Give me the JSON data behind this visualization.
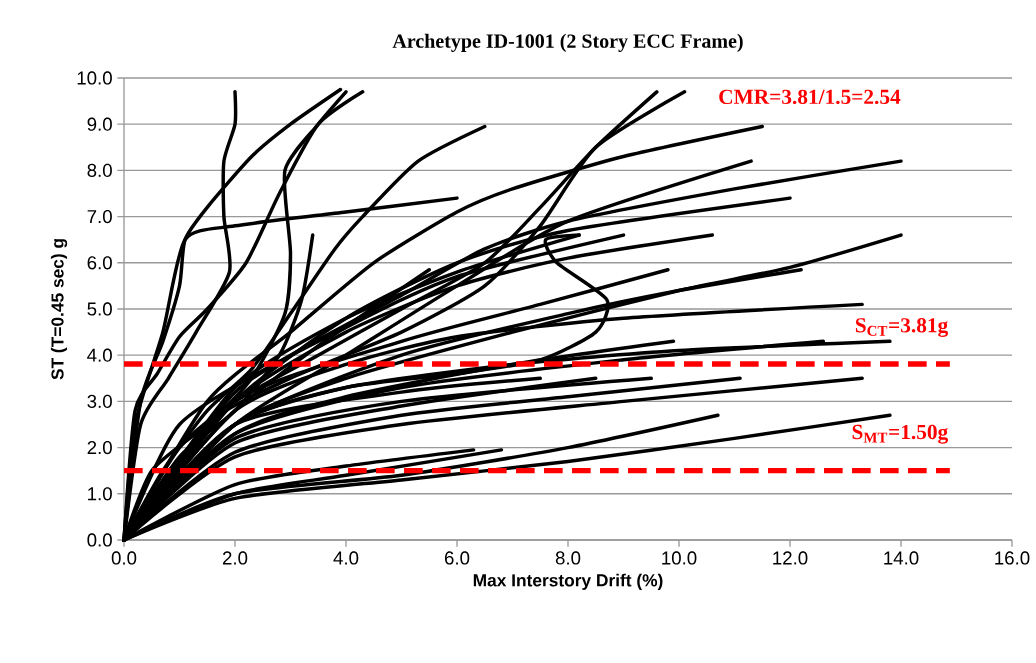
{
  "chart_data": {
    "type": "line",
    "title": "Archetype ID-1001 (2 Story ECC Frame)",
    "xlabel": "Max Interstory Drift (%)",
    "ylabel": "ST (T=0.45 sec) g",
    "xlim": [
      0,
      16
    ],
    "ylim": [
      0,
      10
    ],
    "xticks": [
      {
        "value": 0,
        "label": "0.0"
      },
      {
        "value": 2,
        "label": "2.0"
      },
      {
        "value": 4,
        "label": "4.0"
      },
      {
        "value": 6,
        "label": "6.0"
      },
      {
        "value": 8,
        "label": "8.0"
      },
      {
        "value": 10,
        "label": "10.0"
      },
      {
        "value": 12,
        "label": "12.0"
      },
      {
        "value": 14,
        "label": "14.0"
      },
      {
        "value": 16,
        "label": "16.0"
      }
    ],
    "yticks": [
      {
        "value": 0,
        "label": "0.0"
      },
      {
        "value": 1,
        "label": "1.0"
      },
      {
        "value": 2,
        "label": "2.0"
      },
      {
        "value": 3,
        "label": "3.0"
      },
      {
        "value": 4,
        "label": "4.0"
      },
      {
        "value": 5,
        "label": "5.0"
      },
      {
        "value": 6,
        "label": "6.0"
      },
      {
        "value": 7,
        "label": "7.0"
      },
      {
        "value": 8,
        "label": "8.0"
      },
      {
        "value": 9,
        "label": "9.0"
      },
      {
        "value": 10,
        "label": "10.0"
      }
    ],
    "grid": "y",
    "line_style": "solid",
    "ref_lines": [
      {
        "axis": "y",
        "value": 3.81,
        "label": "S$_{CT}$=3.81g",
        "color": "#ff0000",
        "line_style": "dashed"
      },
      {
        "axis": "y",
        "value": 1.5,
        "label": "S$_{MT}$=1.50g",
        "color": "#ff0000",
        "line_style": "dashed"
      }
    ],
    "annotations": [
      "CMR=3.81/1.5=2.54"
    ],
    "series": [
      {
        "color": "#000000",
        "x": [
          0,
          0.3,
          0.8,
          1.3,
          1.9,
          1.8,
          1.8,
          2.0,
          2.0
        ],
        "values": [
          0,
          2.5,
          3.5,
          4.5,
          5.8,
          7.0,
          8.2,
          9.0,
          9.7
        ]
      },
      {
        "color": "#000000",
        "x": [
          0,
          0.2,
          0.6,
          1.0,
          1.5,
          2.2,
          2.8,
          3.5,
          4.3
        ],
        "values": [
          0,
          2.8,
          3.6,
          4.4,
          5.0,
          6.0,
          7.5,
          9.0,
          9.7
        ]
      },
      {
        "color": "#000000",
        "x": [
          0,
          0.3,
          0.7,
          1.0,
          1.1,
          1.5,
          2.3,
          3.0,
          3.9
        ],
        "values": [
          0,
          3.0,
          4.3,
          5.5,
          6.5,
          7.2,
          8.3,
          9.0,
          9.75
        ]
      },
      {
        "color": "#000000",
        "x": [
          0,
          0.2,
          0.7,
          1.1,
          2.0,
          4.0,
          6.0
        ],
        "values": [
          0,
          2.5,
          4.5,
          6.5,
          6.8,
          7.1,
          7.4
        ]
      },
      {
        "color": "#000000",
        "x": [
          0,
          0.5,
          1.5,
          2.3,
          2.9,
          3.0,
          2.9,
          3.5,
          4.0
        ],
        "values": [
          0,
          1.5,
          2.5,
          3.5,
          4.9,
          6.2,
          8.0,
          9.0,
          9.7
        ]
      },
      {
        "color": "#000000",
        "x": [
          0,
          0.7,
          1.5,
          2.3,
          3.0,
          3.8,
          4.3,
          5.3,
          6.5
        ],
        "values": [
          0,
          1.5,
          2.8,
          3.7,
          4.9,
          6.3,
          7.0,
          8.2,
          8.95
        ]
      },
      {
        "color": "#000000",
        "x": [
          0,
          1.0,
          2.0,
          2.8,
          3.2,
          3.4
        ],
        "values": [
          0,
          1.8,
          2.8,
          4.0,
          5.2,
          6.6
        ]
      },
      {
        "color": "#000000",
        "x": [
          0,
          1.0,
          2.0,
          3.5,
          5.0,
          6.5,
          7.5,
          8.5,
          9.6
        ],
        "values": [
          0,
          2.0,
          3.0,
          4.0,
          5.0,
          6.0,
          7.2,
          8.5,
          9.7
        ]
      },
      {
        "color": "#000000",
        "x": [
          0,
          1.5,
          3.0,
          5.0,
          6.5,
          7.5,
          8.5,
          10.1
        ],
        "values": [
          0,
          2.5,
          3.5,
          4.5,
          5.5,
          6.8,
          8.5,
          9.7
        ]
      },
      {
        "color": "#000000",
        "x": [
          0,
          1.5,
          3.0,
          4.5,
          6.0,
          7.0,
          9.0,
          11.5
        ],
        "values": [
          0,
          3.0,
          4.5,
          6.0,
          7.1,
          7.6,
          8.3,
          8.95
        ]
      },
      {
        "color": "#000000",
        "x": [
          0,
          1.0,
          3.0,
          5.0,
          6.5,
          8.0,
          11.0,
          14.0
        ],
        "values": [
          0,
          2.5,
          4.0,
          5.3,
          6.3,
          6.9,
          7.6,
          8.2
        ]
      },
      {
        "color": "#000000",
        "x": [
          0,
          2.0,
          4.0,
          6.0,
          8.0,
          11.3
        ],
        "values": [
          0,
          2.5,
          4.0,
          5.5,
          6.9,
          8.2
        ]
      },
      {
        "color": "#000000",
        "x": [
          0,
          2.0,
          4.0,
          6.0,
          8.0,
          12.0
        ],
        "values": [
          0,
          3.0,
          4.8,
          6.0,
          6.7,
          7.4
        ]
      },
      {
        "color": "#000000",
        "x": [
          0,
          2.0,
          4.0,
          7.0,
          10.0,
          12.0,
          14.0
        ],
        "values": [
          0,
          2.5,
          3.5,
          4.5,
          5.4,
          5.9,
          6.6
        ]
      },
      {
        "color": "#000000",
        "x": [
          0,
          2.0,
          5.0,
          8.0,
          10.0,
          12.2
        ],
        "values": [
          0,
          2.5,
          4.0,
          4.9,
          5.4,
          5.85
        ]
      },
      {
        "color": "#000000",
        "x": [
          0,
          2.0,
          4.0,
          6.0,
          8.0,
          10.6
        ],
        "values": [
          0,
          3.0,
          4.5,
          5.5,
          6.1,
          6.6
        ]
      },
      {
        "color": "#000000",
        "x": [
          0,
          2.0,
          4.0,
          6.0,
          9.0
        ],
        "values": [
          0,
          3.2,
          4.6,
          5.7,
          6.6
        ]
      },
      {
        "color": "#000000",
        "x": [
          0,
          2.0,
          4.0,
          6.0,
          8.2
        ],
        "values": [
          0,
          3.3,
          4.8,
          5.8,
          6.6
        ]
      },
      {
        "color": "#000000",
        "x": [
          0,
          2.0,
          4.0,
          6.0,
          7.5,
          8.5,
          8.7,
          7.8,
          7.6,
          8.2
        ],
        "values": [
          0,
          2.5,
          3.3,
          3.6,
          3.9,
          4.5,
          5.2,
          6.0,
          6.5,
          6.6
        ]
      },
      {
        "color": "#000000",
        "x": [
          0,
          2.0,
          4.0,
          6.0,
          9.0,
          13.3
        ],
        "values": [
          0,
          2.8,
          3.8,
          4.4,
          4.8,
          5.1
        ]
      },
      {
        "color": "#000000",
        "x": [
          0,
          2.0,
          5.0,
          7.5,
          9.8
        ],
        "values": [
          0,
          3.0,
          4.3,
          5.1,
          5.85
        ]
      },
      {
        "color": "#000000",
        "x": [
          0,
          2.0,
          4.0,
          7.0,
          10.0,
          13.8
        ],
        "values": [
          0,
          2.5,
          3.3,
          3.8,
          4.1,
          4.3
        ]
      },
      {
        "color": "#000000",
        "x": [
          0,
          2.0,
          4.0,
          7.0,
          9.9
        ],
        "values": [
          0,
          2.3,
          3.1,
          3.8,
          4.3
        ]
      },
      {
        "color": "#000000",
        "x": [
          0,
          2.0,
          5.0,
          9.0,
          12.6
        ],
        "values": [
          0,
          2.3,
          3.3,
          3.9,
          4.3
        ]
      },
      {
        "color": "#000000",
        "x": [
          0,
          2.0,
          5.0,
          9.0,
          13.3
        ],
        "values": [
          0,
          1.8,
          2.5,
          3.0,
          3.5
        ]
      },
      {
        "color": "#000000",
        "x": [
          0,
          2.0,
          5.0,
          8.0,
          11.1
        ],
        "values": [
          0,
          1.9,
          2.7,
          3.1,
          3.5
        ]
      },
      {
        "color": "#000000",
        "x": [
          0,
          2.0,
          5.0,
          9.5
        ],
        "values": [
          0,
          2.2,
          3.0,
          3.5
        ]
      },
      {
        "color": "#000000",
        "x": [
          0,
          2.0,
          5.0,
          7.5
        ],
        "values": [
          0,
          2.5,
          3.2,
          3.5
        ]
      },
      {
        "color": "#000000",
        "x": [
          0,
          2.0,
          5.0,
          8.5
        ],
        "values": [
          0,
          2.1,
          2.9,
          3.5
        ]
      },
      {
        "color": "#000000",
        "x": [
          0,
          2.0,
          5.0,
          8.0,
          10.7
        ],
        "values": [
          0,
          1.0,
          1.4,
          2.0,
          2.7
        ]
      },
      {
        "color": "#000000",
        "x": [
          0,
          2.0,
          5.0,
          8.0,
          11.0,
          13.8
        ],
        "values": [
          0,
          0.9,
          1.3,
          1.7,
          2.2,
          2.7
        ]
      },
      {
        "color": "#000000",
        "x": [
          0,
          2.0,
          4.0,
          6.8
        ],
        "values": [
          0,
          1.0,
          1.4,
          1.95
        ]
      },
      {
        "color": "#000000",
        "x": [
          0,
          2.0,
          4.0,
          6.3
        ],
        "values": [
          0,
          1.2,
          1.6,
          1.95
        ]
      },
      {
        "color": "#000000",
        "x": [
          0,
          1.0,
          2.0,
          3.5,
          5.5
        ],
        "values": [
          0,
          1.5,
          2.8,
          4.2,
          5.85
        ]
      }
    ]
  }
}
